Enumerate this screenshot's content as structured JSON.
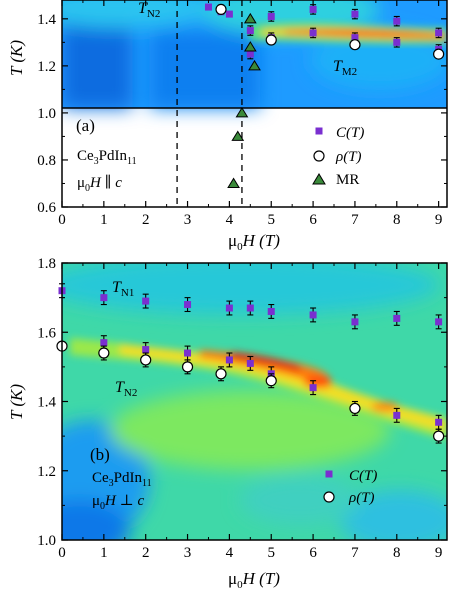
{
  "chart_data": [
    {
      "id": "a",
      "type": "scatter",
      "panel_label": "(a)",
      "compound_main": "Ce",
      "compound_sub1": "3",
      "compound_mid": "PdIn",
      "compound_sub2": "11",
      "field_dir_main": "μ",
      "field_dir_sub": "0",
      "field_dir_rest": "H ∥ c",
      "xlabel_main": "μ",
      "xlabel_sub": "0",
      "xlabel_rest": "H (T)",
      "ylabel": "T (K)",
      "xlim": [
        0,
        9.2
      ],
      "ylim": [
        0.6,
        1.48
      ],
      "x_ticks": [
        "0",
        "1",
        "2",
        "3",
        "4",
        "5",
        "6",
        "7",
        "8",
        "9"
      ],
      "y_ticks": [
        "0.6",
        "0.8",
        "1.0",
        "1.2",
        "1.4"
      ],
      "annotations": [
        {
          "id": "tn2",
          "main": "T",
          "sub": "N2",
          "x": 3.2,
          "y": 1.44
        },
        {
          "id": "tm2",
          "main": "T",
          "sub": "M2",
          "x": 6.5,
          "y": 1.12
        }
      ],
      "dashed_lines_x": [
        2.75,
        4.3
      ],
      "legend_position": "lower-right",
      "series": [
        {
          "name": "C(T)",
          "marker": "square",
          "color": "#7a2fd0",
          "points": [
            {
              "x": 3.5,
              "y": 1.45,
              "err": 0.01
            },
            {
              "x": 3.8,
              "y": 1.43,
              "err": 0.01
            },
            {
              "x": 4.0,
              "y": 1.42,
              "err": 0.01
            },
            {
              "x": 4.5,
              "y": 1.35,
              "err": 0.02
            },
            {
              "x": 4.5,
              "y": 1.25,
              "err": 0.02
            },
            {
              "x": 5.0,
              "y": 1.41,
              "err": 0.02
            },
            {
              "x": 5.0,
              "y": 1.32,
              "err": 0.02
            },
            {
              "x": 6.0,
              "y": 1.44,
              "err": 0.02
            },
            {
              "x": 6.0,
              "y": 1.34,
              "err": 0.02
            },
            {
              "x": 7.0,
              "y": 1.42,
              "err": 0.02
            },
            {
              "x": 7.0,
              "y": 1.32,
              "err": 0.02
            },
            {
              "x": 8.0,
              "y": 1.39,
              "err": 0.02
            },
            {
              "x": 8.0,
              "y": 1.3,
              "err": 0.02
            },
            {
              "x": 9.0,
              "y": 1.34,
              "err": 0.02
            },
            {
              "x": 9.0,
              "y": 1.27,
              "err": 0.02
            }
          ]
        },
        {
          "name": "ρ(T)",
          "marker": "circle",
          "color": "#ffffff",
          "points": [
            {
              "x": 3.8,
              "y": 1.44,
              "err": 0
            },
            {
              "x": 5.0,
              "y": 1.31,
              "err": 0
            },
            {
              "x": 7.0,
              "y": 1.29,
              "err": 0
            },
            {
              "x": 9.0,
              "y": 1.25,
              "err": 0
            }
          ]
        },
        {
          "name": "MR",
          "marker": "triangle",
          "color": "#3a8a3a",
          "points": [
            {
              "x": 4.5,
              "y": 1.4
            },
            {
              "x": 4.5,
              "y": 1.28
            },
            {
              "x": 4.6,
              "y": 1.2
            },
            {
              "x": 4.3,
              "y": 1.0
            },
            {
              "x": 4.2,
              "y": 0.9
            },
            {
              "x": 4.1,
              "y": 0.7
            }
          ]
        }
      ]
    },
    {
      "id": "b",
      "type": "scatter",
      "panel_label": "(b)",
      "compound_main": "Ce",
      "compound_sub1": "3",
      "compound_mid": "PdIn",
      "compound_sub2": "11",
      "field_dir_main": "μ",
      "field_dir_sub": "0",
      "field_dir_rest": "H ⊥ c",
      "xlabel_main": "μ",
      "xlabel_sub": "0",
      "xlabel_rest": "H (T)",
      "ylabel": "T (K)",
      "xlim": [
        0,
        9.2
      ],
      "ylim": [
        1.0,
        1.8
      ],
      "x_ticks": [
        "0",
        "1",
        "2",
        "3",
        "4",
        "5",
        "6",
        "7",
        "8",
        "9"
      ],
      "y_ticks": [
        "1.0",
        "1.2",
        "1.4",
        "1.6",
        "1.8"
      ],
      "annotations": [
        {
          "id": "tn1",
          "main": "T",
          "sub": "N1",
          "x": 1.4,
          "y": 1.735
        },
        {
          "id": "tn2",
          "main": "T",
          "sub": "N2",
          "x": 1.4,
          "y": 1.435
        }
      ],
      "legend_position": "lower-right",
      "series": [
        {
          "name": "C(T)",
          "marker": "square",
          "color": "#7a2fd0",
          "points": [
            {
              "x": 0,
              "y": 1.72,
              "err": 0.02
            },
            {
              "x": 1,
              "y": 1.7,
              "err": 0.02
            },
            {
              "x": 2,
              "y": 1.69,
              "err": 0.02
            },
            {
              "x": 3,
              "y": 1.68,
              "err": 0.02
            },
            {
              "x": 4,
              "y": 1.67,
              "err": 0.02
            },
            {
              "x": 4.5,
              "y": 1.67,
              "err": 0.02
            },
            {
              "x": 5,
              "y": 1.66,
              "err": 0.02
            },
            {
              "x": 6,
              "y": 1.65,
              "err": 0.02
            },
            {
              "x": 7,
              "y": 1.63,
              "err": 0.02
            },
            {
              "x": 8,
              "y": 1.64,
              "err": 0.02
            },
            {
              "x": 9,
              "y": 1.63,
              "err": 0.02
            },
            {
              "x": 1,
              "y": 1.57,
              "err": 0.02
            },
            {
              "x": 2,
              "y": 1.55,
              "err": 0.02
            },
            {
              "x": 3,
              "y": 1.54,
              "err": 0.02
            },
            {
              "x": 4,
              "y": 1.52,
              "err": 0.02
            },
            {
              "x": 4.5,
              "y": 1.51,
              "err": 0.02
            },
            {
              "x": 5,
              "y": 1.48,
              "err": 0.02
            },
            {
              "x": 6,
              "y": 1.44,
              "err": 0.02
            },
            {
              "x": 8,
              "y": 1.36,
              "err": 0.02
            },
            {
              "x": 9,
              "y": 1.34,
              "err": 0.02
            }
          ]
        },
        {
          "name": "ρ(T)",
          "marker": "circle",
          "color": "#ffffff",
          "points": [
            {
              "x": 0,
              "y": 1.56,
              "err": 0
            },
            {
              "x": 1,
              "y": 1.54,
              "err": 0.02
            },
            {
              "x": 2,
              "y": 1.52,
              "err": 0.02
            },
            {
              "x": 3,
              "y": 1.5,
              "err": 0.02
            },
            {
              "x": 3.8,
              "y": 1.48,
              "err": 0.02
            },
            {
              "x": 5,
              "y": 1.46,
              "err": 0.02
            },
            {
              "x": 7,
              "y": 1.38,
              "err": 0.02
            },
            {
              "x": 9,
              "y": 1.3,
              "err": 0.02
            }
          ]
        }
      ]
    }
  ]
}
